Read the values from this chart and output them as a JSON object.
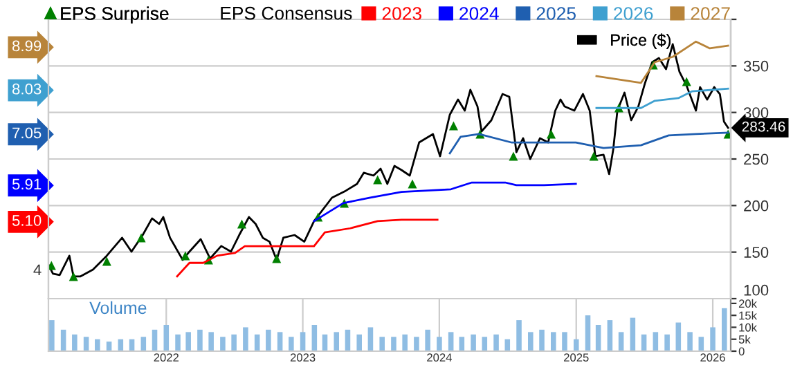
{
  "chart_data": [
    {
      "type": "line",
      "legend_title": "EPS Consensus",
      "legend": "top",
      "grid": true,
      "tick_labels": "y",
      "xlim": [
        "2021-02-20",
        "2026-02-18"
      ],
      "xticks": [
        "2022",
        "2023",
        "2024",
        "2025",
        "2026"
      ],
      "ylim": [
        3.353,
        9.575
      ],
      "yticks": [
        4,
        {
          "value": 5.1,
          "label": "5.10"
        },
        5.91,
        7.05,
        8.03,
        8.99
      ],
      "y2lim": [
        100,
        400
      ],
      "y2ticks": [
        100,
        150,
        200,
        250,
        300,
        350,
        {
          "value": 400,
          "label": null
        }
      ],
      "series": [
        {
          "name": "2023",
          "color": "#ff0000",
          "x": [
            "2022-01-30",
            "2022-03-04",
            "2022-04-10",
            "2022-05-17",
            "2022-07-04",
            "2022-07-30",
            "2023-01-31",
            "2023-03-01",
            "2023-05-08",
            "2023-07-20",
            "2023-09-22",
            "2023-12-27"
          ],
          "values": [
            3.85,
            4.15,
            4.15,
            4.31,
            4.37,
            4.52,
            4.52,
            4.83,
            4.92,
            5.08,
            5.11,
            5.11
          ]
        },
        {
          "name": "2024",
          "color": "#0000ff",
          "x": [
            "2023-01-31",
            "2023-04-19",
            "2023-06-28",
            "2023-09-22",
            "2024-02-01",
            "2024-03-28",
            "2024-06-25",
            "2024-07-25",
            "2024-10-07",
            "2024-12-31"
          ],
          "values": [
            5.08,
            5.48,
            5.6,
            5.73,
            5.79,
            5.94,
            5.94,
            5.88,
            5.88,
            5.91
          ]
        },
        {
          "name": "2025",
          "color": "#1f5fb0",
          "x": [
            "2024-01-29",
            "2024-02-27",
            "2024-04-16",
            "2024-07-13",
            "2024-12-31",
            "2025-03-15",
            "2025-06-23",
            "2025-09-05",
            "2025-11-17",
            "2026-02-11"
          ],
          "values": [
            6.59,
            6.96,
            7.02,
            6.83,
            6.83,
            6.71,
            6.77,
            6.99,
            7.02,
            7.05
          ]
        },
        {
          "name": "2026",
          "color": "#3fa0d0",
          "x": [
            "2025-02-24",
            "2025-06-23",
            "2025-07-30",
            "2025-10-01",
            "2025-11-06",
            "2026-02-11"
          ],
          "values": [
            7.6,
            7.6,
            7.76,
            7.82,
            7.97,
            8.03
          ]
        },
        {
          "name": "2027",
          "color": "#b8843a",
          "x": [
            "2025-02-24",
            "2025-06-23",
            "2025-07-30",
            "2025-09-16",
            "2025-11-17",
            "2025-12-24",
            "2026-02-11"
          ],
          "values": [
            8.31,
            8.16,
            8.62,
            8.74,
            9.08,
            8.93,
            8.99
          ]
        },
        {
          "name": "Price ($)",
          "color": "#000000",
          "axis": "y2",
          "x": [
            "2021-02-21",
            "2021-03-04",
            "2021-03-22",
            "2021-04-17",
            "2021-04-28",
            "2021-05-16",
            "2021-06-19",
            "2021-07-26",
            "2021-09-05",
            "2021-09-30",
            "2021-10-30",
            "2021-11-24",
            "2021-12-13",
            "2021-12-24",
            "2022-01-11",
            "2022-02-14",
            "2022-03-04",
            "2022-04-03",
            "2022-04-28",
            "2022-05-28",
            "2022-06-23",
            "2022-07-15",
            "2022-08-10",
            "2022-08-28",
            "2022-09-16",
            "2022-10-04",
            "2022-10-23",
            "2022-11-10",
            "2022-12-10",
            "2023-01-05",
            "2023-01-31",
            "2023-03-20",
            "2023-04-26",
            "2023-05-26",
            "2023-06-13",
            "2023-07-09",
            "2023-07-28",
            "2023-08-15",
            "2023-09-03",
            "2023-09-22",
            "2023-10-14",
            "2023-11-08",
            "2023-12-15",
            "2024-01-03",
            "2024-01-29",
            "2024-02-20",
            "2024-03-09",
            "2024-03-24",
            "2024-04-12",
            "2024-04-23",
            "2024-05-19",
            "2024-06-18",
            "2024-07-06",
            "2024-07-25",
            "2024-08-12",
            "2024-08-31",
            "2024-09-26",
            "2024-10-18",
            "2024-11-06",
            "2024-11-20",
            "2024-12-01",
            "2024-12-27",
            "2025-01-19",
            "2025-02-06",
            "2025-02-21",
            "2025-03-15",
            "2025-03-30",
            "2025-04-10",
            "2025-04-21",
            "2025-05-10",
            "2025-05-28",
            "2025-06-16",
            "2025-07-04",
            "2025-07-23",
            "2025-08-10",
            "2025-08-29",
            "2025-09-16",
            "2025-10-04",
            "2025-10-23",
            "2025-11-17",
            "2025-11-28",
            "2025-12-17",
            "2026-01-05",
            "2026-01-20",
            "2026-01-31",
            "2026-02-11"
          ],
          "value_labels": [
            null,
            null,
            null,
            null,
            null,
            null,
            null,
            null,
            null,
            null,
            null,
            null,
            null,
            null,
            null,
            null,
            null,
            null,
            null,
            null,
            null,
            null,
            null,
            null,
            null,
            null,
            null,
            null,
            null,
            null,
            null,
            null,
            null,
            null,
            null,
            null,
            null,
            null,
            null,
            null,
            null,
            null,
            null,
            null,
            null,
            null,
            null,
            null,
            null,
            null,
            null,
            null,
            null,
            null,
            null,
            null,
            null,
            null,
            null,
            null,
            null,
            null,
            null,
            null,
            null,
            null,
            null,
            null,
            null,
            null,
            null,
            null,
            null,
            null,
            null,
            null,
            null,
            null,
            null,
            null,
            null,
            null,
            null,
            null,
            null,
            "283.46"
          ],
          "values": [
            135.7,
            126.8,
            125.3,
            146.1,
            123.8,
            123.8,
            131.2,
            146.1,
            165.4,
            150.5,
            168.3,
            186.2,
            180.2,
            187.6,
            165.4,
            141.6,
            150.5,
            163.9,
            143.1,
            156.5,
            150.5,
            168.3,
            187.6,
            180.2,
            165.4,
            161.2,
            141.6,
            165.4,
            168.3,
            161.2,
            183.2,
            208.4,
            215.9,
            223.3,
            235.2,
            232.2,
            239.6,
            223.3,
            242.6,
            238.1,
            232.2,
            267.8,
            276.7,
            253,
            297.5,
            313.9,
            302,
            324.3,
            306.4,
            279.7,
            291.6,
            319.8,
            316.8,
            257.4,
            272.3,
            250,
            272.3,
            267.8,
            302,
            313.9,
            306.4,
            302,
            319.8,
            302,
            253,
            254.5,
            233.7,
            260.4,
            302,
            321.3,
            291.6,
            306.4,
            331.7,
            354,
            358.4,
            346.5,
            373.3,
            343.6,
            328.7,
            302,
            327.2,
            313.9,
            327.2,
            319.8,
            290.1,
            283.46
          ]
        },
        {
          "name": "EPS Surprise",
          "type": "scatter",
          "marker": "triangle",
          "color": "#008000",
          "axis": "y2",
          "x": [
            "2021-02-28",
            "2021-04-28",
            "2021-07-26",
            "2021-10-26",
            "2022-02-21",
            "2022-04-24",
            "2022-07-22",
            "2022-10-23",
            "2023-02-11",
            "2023-04-22",
            "2023-07-20",
            "2023-10-21",
            "2024-02-08",
            "2024-04-19",
            "2024-07-17",
            "2024-10-26",
            "2025-02-17",
            "2025-04-25",
            "2025-07-26",
            "2025-10-23",
            "2026-02-11"
          ],
          "values": [
            135.7,
            123.8,
            140.1,
            165.4,
            146.1,
            141.6,
            180.2,
            143.1,
            187.6,
            202.5,
            227.7,
            223.3,
            285.7,
            276.7,
            253,
            276.7,
            253,
            305,
            351,
            333.2,
            276.7
          ]
        }
      ]
    },
    {
      "type": "bar",
      "title": "Volume",
      "color": "#8fbde3",
      "grid": true,
      "xlim": [
        "2021-02-20",
        "2026-02-18"
      ],
      "xticks": [
        "2022",
        "2023",
        "2024",
        "2025",
        "2026"
      ],
      "ylim": [
        0,
        22000
      ],
      "yticks": [
        0,
        {
          "value": 5000,
          "label": "5k"
        },
        {
          "value": 10000,
          "label": "10k"
        },
        {
          "value": 15000,
          "label": "15k"
        },
        {
          "value": 20000,
          "label": "20k"
        }
      ],
      "x": [
        "2021-03-01",
        "2021-04-01",
        "2021-05-01",
        "2021-06-01",
        "2021-07-01",
        "2021-08-01",
        "2021-09-01",
        "2021-10-01",
        "2021-11-01",
        "2021-12-01",
        "2022-01-01",
        "2022-02-01",
        "2022-03-01",
        "2022-04-01",
        "2022-05-01",
        "2022-06-01",
        "2022-07-01",
        "2022-08-01",
        "2022-09-01",
        "2022-10-01",
        "2022-11-01",
        "2022-12-01",
        "2023-01-01",
        "2023-02-01",
        "2023-03-01",
        "2023-04-01",
        "2023-05-01",
        "2023-06-01",
        "2023-07-01",
        "2023-08-01",
        "2023-09-01",
        "2023-10-01",
        "2023-11-01",
        "2023-12-01",
        "2024-01-01",
        "2024-02-01",
        "2024-03-01",
        "2024-04-01",
        "2024-05-01",
        "2024-06-01",
        "2024-07-01",
        "2024-08-01",
        "2024-09-01",
        "2024-10-01",
        "2024-11-01",
        "2024-12-01",
        "2025-01-01",
        "2025-02-01",
        "2025-03-01",
        "2025-04-01",
        "2025-05-01",
        "2025-06-01",
        "2025-07-01",
        "2025-08-01",
        "2025-09-01",
        "2025-10-01",
        "2025-11-01",
        "2025-12-01",
        "2026-01-01",
        "2026-02-01"
      ],
      "values": [
        13000,
        9000,
        7000,
        6000,
        5000,
        4000,
        5000,
        5000,
        6000,
        9000,
        11000,
        7000,
        8000,
        9000,
        8000,
        6000,
        7000,
        10000,
        7000,
        9000,
        8000,
        6000,
        8000,
        11000,
        7000,
        8000,
        9000,
        7000,
        10000,
        6000,
        6000,
        7000,
        6000,
        9000,
        6000,
        8000,
        6000,
        7000,
        6000,
        7000,
        5000,
        13000,
        8000,
        9000,
        8000,
        8000,
        5000,
        15000,
        11000,
        13000,
        8000,
        14000,
        7000,
        8000,
        7000,
        12000,
        8000,
        6000,
        10000,
        18000
      ]
    }
  ]
}
